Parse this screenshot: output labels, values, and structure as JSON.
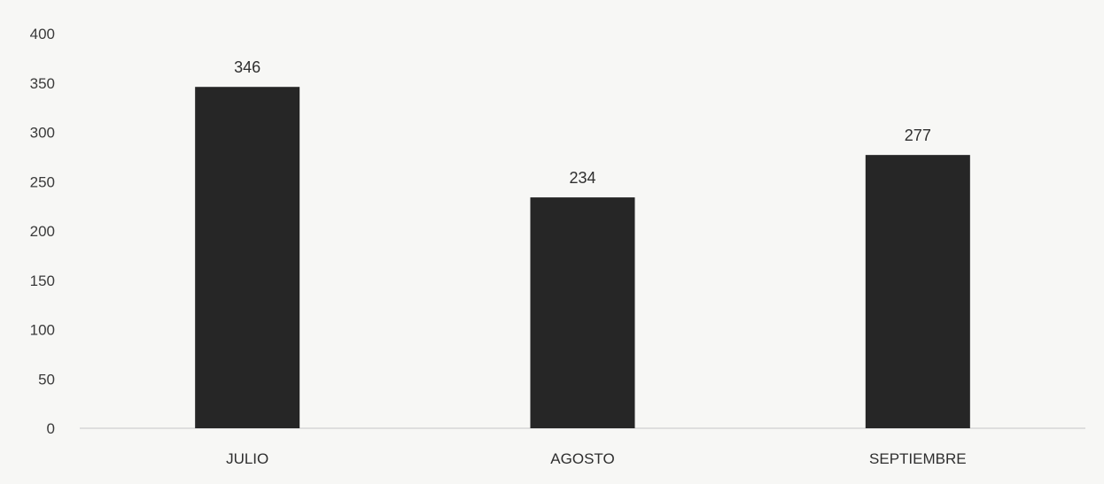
{
  "chart_data": {
    "type": "bar",
    "categories": [
      "JULIO",
      "AGOSTO",
      "SEPTIEMBRE"
    ],
    "values": [
      346,
      234,
      277
    ],
    "data_labels": [
      "346",
      "234",
      "277"
    ],
    "title": "",
    "xlabel": "",
    "ylabel": "",
    "ylim": [
      0,
      400
    ],
    "yticks": [
      0,
      50,
      100,
      150,
      200,
      250,
      300,
      350,
      400
    ],
    "ytick_labels": [
      "0",
      "50",
      "100",
      "150",
      "200",
      "250",
      "300",
      "350",
      "400"
    ],
    "grid": false,
    "legend": "none",
    "bar_color": "#262626",
    "axis_color": "#d6d6d6"
  }
}
